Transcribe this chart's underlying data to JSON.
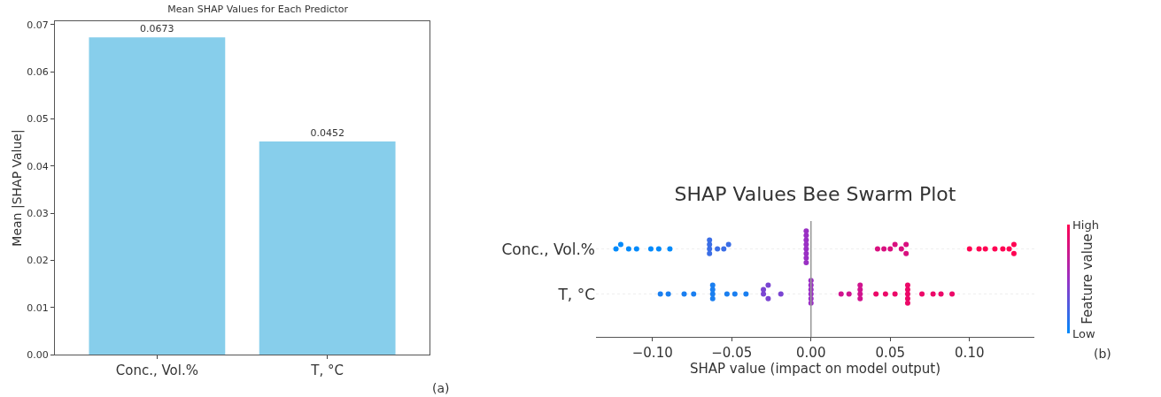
{
  "chart_data": [
    {
      "type": "bar",
      "title": "Mean SHAP Values for Each Predictor",
      "ylabel": "Mean |SHAP Value|",
      "categories": [
        "Conc., Vol.%",
        "T, °C"
      ],
      "values": [
        0.0673,
        0.0452
      ],
      "color": "#87ceeb",
      "data_labels": true,
      "ylim": [
        0,
        0.0707
      ],
      "yticks": [
        {
          "value": 0,
          "label": "0.00"
        },
        {
          "value": 0.01,
          "label": "0.01"
        },
        {
          "value": 0.02,
          "label": "0.02"
        },
        {
          "value": 0.03,
          "label": "0.03"
        },
        {
          "value": 0.04,
          "label": "0.04"
        },
        {
          "value": 0.05,
          "label": "0.05"
        },
        {
          "value": 0.06,
          "label": "0.06"
        },
        {
          "value": 0.07,
          "label": "0.07"
        }
      ],
      "grid": false,
      "annotations": [
        "(a)"
      ]
    },
    {
      "type": "scatter",
      "orientation": "horizontal",
      "title": "SHAP Values Bee Swarm Plot",
      "xlabel": "SHAP value (impact on model output)",
      "categories": [
        "Conc., Vol.%",
        "T, °C"
      ],
      "clabel": "Feature value",
      "grid": "y",
      "marker": "circle",
      "xlim": [
        -0.1356,
        0.1409
      ],
      "xticks": [
        {
          "value": -0.1,
          "label": "−0.10"
        },
        {
          "value": -0.05,
          "label": "−0.05"
        },
        {
          "value": 0,
          "label": "0.00"
        },
        {
          "value": 0.05,
          "label": "0.05"
        },
        {
          "value": 0.1,
          "label": "0.10"
        }
      ],
      "ref_lines": [
        {
          "axis": "x",
          "value": 0,
          "color": "#999999"
        }
      ],
      "annotations": [
        "High",
        "Low",
        "(b)"
      ],
      "series": [
        {
          "x": [
            "Conc., Vol.%",
            "Conc., Vol.%",
            "Conc., Vol.%",
            "Conc., Vol.%",
            "Conc., Vol.%",
            "Conc., Vol.%",
            "Conc., Vol.%",
            "Conc., Vol.%",
            "Conc., Vol.%",
            "Conc., Vol.%",
            "Conc., Vol.%",
            "Conc., Vol.%",
            "Conc., Vol.%",
            "Conc., Vol.%",
            "Conc., Vol.%",
            "Conc., Vol.%",
            "Conc., Vol.%",
            "Conc., Vol.%",
            "Conc., Vol.%",
            "Conc., Vol.%",
            "Conc., Vol.%",
            "Conc., Vol.%",
            "Conc., Vol.%",
            "Conc., Vol.%",
            "Conc., Vol.%",
            "Conc., Vol.%",
            "Conc., Vol.%",
            "Conc., Vol.%",
            "Conc., Vol.%",
            "Conc., Vol.%",
            "Conc., Vol.%",
            "Conc., Vol.%",
            "Conc., Vol.%",
            "Conc., Vol.%",
            "Conc., Vol.%",
            "Conc., Vol.%",
            "Conc., Vol.%"
          ],
          "values": [
            -0.123,
            -0.12,
            -0.115,
            -0.11,
            -0.101,
            -0.096,
            -0.089,
            -0.064,
            -0.064,
            -0.064,
            -0.064,
            -0.059,
            -0.055,
            -0.052,
            -0.003,
            -0.003,
            -0.003,
            -0.003,
            -0.003,
            -0.003,
            -0.003,
            -0.003,
            0.042,
            0.046,
            0.05,
            0.053,
            0.057,
            0.06,
            0.06,
            0.1,
            0.106,
            0.11,
            0.116,
            0.121,
            0.125,
            0.128,
            0.128
          ],
          "colors": [
            "#008afb",
            "#008afb",
            "#008afb",
            "#008afb",
            "#008afb",
            "#008afb",
            "#008afb",
            "#3b6ee6",
            "#3b6ee6",
            "#3b6ee6",
            "#3b6ee6",
            "#3b6ee6",
            "#3b6ee6",
            "#3b6ee6",
            "#9a30c4",
            "#9a30c4",
            "#9a30c4",
            "#9a30c4",
            "#9a30c4",
            "#9a30c4",
            "#9a30c4",
            "#9a30c4",
            "#d9107f",
            "#d9107f",
            "#d9107f",
            "#d9107f",
            "#d9107f",
            "#d9107f",
            "#d9107f",
            "#ff0052",
            "#ff0052",
            "#ff0052",
            "#ff0052",
            "#ff0052",
            "#ff0052",
            "#ff0052",
            "#ff0052"
          ]
        },
        {
          "x": [
            "T, °C",
            "T, °C",
            "T, °C",
            "T, °C",
            "T, °C",
            "T, °C",
            "T, °C",
            "T, °C",
            "T, °C",
            "T, °C",
            "T, °C",
            "T, °C",
            "T, °C",
            "T, °C",
            "T, °C",
            "T, °C",
            "T, °C",
            "T, °C",
            "T, °C",
            "T, °C",
            "T, °C",
            "T, °C",
            "T, °C",
            "T, °C",
            "T, °C",
            "T, °C",
            "T, °C",
            "T, °C",
            "T, °C",
            "T, °C",
            "T, °C",
            "T, °C",
            "T, °C",
            "T, °C",
            "T, °C",
            "T, °C",
            "T, °C",
            "T, °C",
            "T, °C",
            "T, °C"
          ],
          "values": [
            -0.095,
            -0.09,
            -0.08,
            -0.074,
            -0.062,
            -0.062,
            -0.062,
            -0.062,
            -0.053,
            -0.048,
            -0.041,
            -0.03,
            -0.03,
            -0.027,
            -0.027,
            -0.019,
            0,
            0,
            0,
            0,
            0,
            0,
            0.019,
            0.024,
            0.031,
            0.031,
            0.031,
            0.031,
            0.041,
            0.047,
            0.053,
            0.061,
            0.061,
            0.061,
            0.061,
            0.061,
            0.07,
            0.077,
            0.082,
            0.089
          ],
          "colors": [
            "#1a7ff0",
            "#1a7ff0",
            "#1a7ff0",
            "#1a7ff0",
            "#1a7ff0",
            "#1a7ff0",
            "#1a7ff0",
            "#1a7ff0",
            "#1a7ff0",
            "#1a7ff0",
            "#1a7ff0",
            "#7a45d2",
            "#7a45d2",
            "#7a45d2",
            "#7a45d2",
            "#7a45d2",
            "#9a30c4",
            "#9a30c4",
            "#9a30c4",
            "#9a30c4",
            "#9a30c4",
            "#9a30c4",
            "#d0148f",
            "#d0148f",
            "#d0148f",
            "#d0148f",
            "#d0148f",
            "#d0148f",
            "#ec0868",
            "#ec0868",
            "#ec0868",
            "#ec0868",
            "#ec0868",
            "#ec0868",
            "#ec0868",
            "#ec0868",
            "#ec0868",
            "#ec0868",
            "#ec0868",
            "#ec0868"
          ]
        }
      ]
    }
  ]
}
